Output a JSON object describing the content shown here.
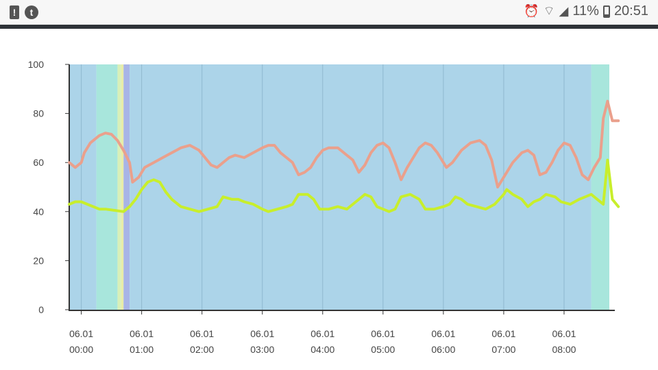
{
  "status_bar": {
    "left_icons": [
      {
        "name": "alert-icon",
        "glyph": "!"
      },
      {
        "name": "tumblr-icon",
        "glyph": "t"
      }
    ],
    "battery_percent": "11%",
    "time": "20:51"
  },
  "chart_data": {
    "type": "line",
    "title": "",
    "xlabel": "",
    "ylabel": "",
    "ylim": [
      0,
      100
    ],
    "yticks": [
      "0",
      "20",
      "40",
      "60",
      "80",
      "100"
    ],
    "xlim_hours": [
      -0.2,
      8.75
    ],
    "xticks": [
      {
        "hour": 0,
        "date": "06.01",
        "time": "00:00"
      },
      {
        "hour": 1,
        "date": "06.01",
        "time": "01:00"
      },
      {
        "hour": 2,
        "date": "06.01",
        "time": "02:00"
      },
      {
        "hour": 3,
        "date": "06.01",
        "time": "03:00"
      },
      {
        "hour": 4,
        "date": "06.01",
        "time": "04:00"
      },
      {
        "hour": 5,
        "date": "06.01",
        "time": "05:00"
      },
      {
        "hour": 6,
        "date": "06.01",
        "time": "06:00"
      },
      {
        "hour": 7,
        "date": "06.01",
        "time": "07:00"
      },
      {
        "hour": 8,
        "date": "06.01",
        "time": "08:00"
      }
    ],
    "background_bands": [
      {
        "from": -0.2,
        "to": 0.25,
        "color": "#acd4e9"
      },
      {
        "from": 0.25,
        "to": 0.6,
        "color": "#a8e6dc"
      },
      {
        "from": 0.6,
        "to": 0.66,
        "color": "#d8f0b8"
      },
      {
        "from": 0.66,
        "to": 0.7,
        "color": "#e8eca8"
      },
      {
        "from": 0.7,
        "to": 0.8,
        "color": "#a8b4e6"
      },
      {
        "from": 0.8,
        "to": 8.45,
        "color": "#acd4e9"
      },
      {
        "from": 8.45,
        "to": 8.75,
        "color": "#a8e6dc"
      }
    ],
    "series": [
      {
        "color": "#eaa08c",
        "points": [
          [
            -0.2,
            60
          ],
          [
            -0.1,
            58
          ],
          [
            0.0,
            60
          ],
          [
            0.05,
            64
          ],
          [
            0.15,
            68
          ],
          [
            0.3,
            71
          ],
          [
            0.4,
            72
          ],
          [
            0.5,
            71.5
          ],
          [
            0.6,
            69
          ],
          [
            0.7,
            65
          ],
          [
            0.8,
            60
          ],
          [
            0.85,
            52
          ],
          [
            0.95,
            54
          ],
          [
            1.05,
            58
          ],
          [
            1.2,
            60
          ],
          [
            1.35,
            62
          ],
          [
            1.5,
            64
          ],
          [
            1.65,
            66
          ],
          [
            1.8,
            67
          ],
          [
            1.95,
            65
          ],
          [
            2.05,
            62
          ],
          [
            2.15,
            59
          ],
          [
            2.25,
            58
          ],
          [
            2.35,
            60
          ],
          [
            2.45,
            62
          ],
          [
            2.55,
            63
          ],
          [
            2.7,
            62
          ],
          [
            2.85,
            64
          ],
          [
            3.0,
            66
          ],
          [
            3.1,
            67
          ],
          [
            3.2,
            67
          ],
          [
            3.3,
            64
          ],
          [
            3.4,
            62
          ],
          [
            3.5,
            60
          ],
          [
            3.6,
            55
          ],
          [
            3.7,
            56
          ],
          [
            3.8,
            58
          ],
          [
            3.9,
            62
          ],
          [
            4.0,
            65
          ],
          [
            4.1,
            66
          ],
          [
            4.25,
            66
          ],
          [
            4.4,
            63
          ],
          [
            4.5,
            61
          ],
          [
            4.6,
            56
          ],
          [
            4.7,
            59
          ],
          [
            4.8,
            64
          ],
          [
            4.9,
            67
          ],
          [
            5.0,
            68
          ],
          [
            5.1,
            66
          ],
          [
            5.2,
            60
          ],
          [
            5.3,
            53
          ],
          [
            5.4,
            58
          ],
          [
            5.5,
            62
          ],
          [
            5.6,
            66
          ],
          [
            5.7,
            68
          ],
          [
            5.8,
            67
          ],
          [
            5.9,
            64
          ],
          [
            6.0,
            60
          ],
          [
            6.05,
            58
          ],
          [
            6.15,
            60
          ],
          [
            6.3,
            65
          ],
          [
            6.45,
            68
          ],
          [
            6.6,
            69
          ],
          [
            6.7,
            67
          ],
          [
            6.8,
            61
          ],
          [
            6.9,
            50
          ],
          [
            7.0,
            54
          ],
          [
            7.15,
            60
          ],
          [
            7.3,
            64
          ],
          [
            7.4,
            65
          ],
          [
            7.5,
            63
          ],
          [
            7.6,
            55
          ],
          [
            7.7,
            56
          ],
          [
            7.8,
            60
          ],
          [
            7.9,
            65
          ],
          [
            8.0,
            68
          ],
          [
            8.1,
            67
          ],
          [
            8.2,
            62
          ],
          [
            8.3,
            55
          ],
          [
            8.4,
            53
          ],
          [
            8.5,
            58
          ],
          [
            8.6,
            62
          ],
          [
            8.65,
            78
          ],
          [
            8.72,
            85
          ],
          [
            8.8,
            77
          ],
          [
            8.9,
            77
          ]
        ]
      },
      {
        "color": "#c8ee2c",
        "points": [
          [
            -0.2,
            43
          ],
          [
            -0.1,
            44
          ],
          [
            0.0,
            44
          ],
          [
            0.1,
            43
          ],
          [
            0.2,
            42
          ],
          [
            0.3,
            41
          ],
          [
            0.4,
            41
          ],
          [
            0.55,
            40.5
          ],
          [
            0.7,
            40
          ],
          [
            0.8,
            42
          ],
          [
            0.9,
            45
          ],
          [
            1.0,
            49
          ],
          [
            1.1,
            52
          ],
          [
            1.2,
            53
          ],
          [
            1.3,
            52
          ],
          [
            1.4,
            48
          ],
          [
            1.5,
            45
          ],
          [
            1.65,
            42
          ],
          [
            1.8,
            41
          ],
          [
            1.95,
            40
          ],
          [
            2.1,
            41
          ],
          [
            2.25,
            42
          ],
          [
            2.35,
            46
          ],
          [
            2.5,
            45
          ],
          [
            2.6,
            45
          ],
          [
            2.7,
            44
          ],
          [
            2.85,
            43
          ],
          [
            3.0,
            41
          ],
          [
            3.1,
            40
          ],
          [
            3.25,
            41
          ],
          [
            3.4,
            42
          ],
          [
            3.5,
            43
          ],
          [
            3.6,
            47
          ],
          [
            3.75,
            47
          ],
          [
            3.85,
            45
          ],
          [
            3.95,
            41
          ],
          [
            4.1,
            41
          ],
          [
            4.25,
            42
          ],
          [
            4.4,
            41
          ],
          [
            4.55,
            44
          ],
          [
            4.7,
            47
          ],
          [
            4.8,
            46
          ],
          [
            4.9,
            42
          ],
          [
            5.0,
            41
          ],
          [
            5.1,
            40
          ],
          [
            5.2,
            41
          ],
          [
            5.3,
            46
          ],
          [
            5.45,
            47
          ],
          [
            5.6,
            45
          ],
          [
            5.7,
            41
          ],
          [
            5.85,
            41
          ],
          [
            6.0,
            42
          ],
          [
            6.1,
            43
          ],
          [
            6.2,
            46
          ],
          [
            6.3,
            45
          ],
          [
            6.4,
            43
          ],
          [
            6.55,
            42
          ],
          [
            6.7,
            41
          ],
          [
            6.85,
            43
          ],
          [
            7.0,
            47
          ],
          [
            7.05,
            49
          ],
          [
            7.15,
            47
          ],
          [
            7.3,
            45
          ],
          [
            7.4,
            42
          ],
          [
            7.5,
            44
          ],
          [
            7.6,
            45
          ],
          [
            7.7,
            47
          ],
          [
            7.85,
            46
          ],
          [
            7.95,
            44
          ],
          [
            8.1,
            43
          ],
          [
            8.25,
            45
          ],
          [
            8.35,
            46
          ],
          [
            8.45,
            47
          ],
          [
            8.55,
            45
          ],
          [
            8.65,
            43
          ],
          [
            8.72,
            61
          ],
          [
            8.8,
            45
          ],
          [
            8.9,
            42
          ]
        ]
      }
    ],
    "grid": "vertical"
  }
}
